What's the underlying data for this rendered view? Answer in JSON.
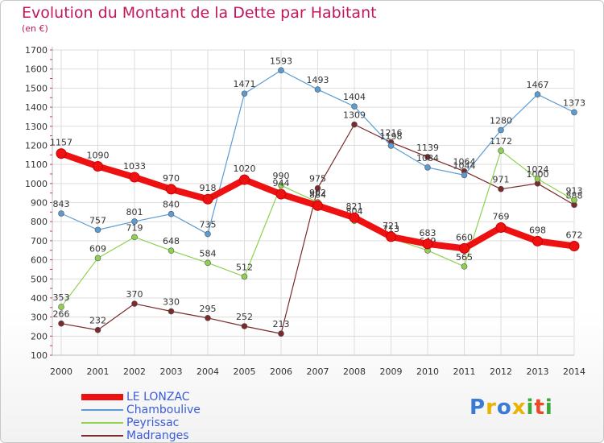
{
  "title": "Evolution du Montant de la Dette par Habitant",
  "unit": "(en €)",
  "logo": {
    "text": "Proxiti",
    "colors": [
      "#3a7bd5",
      "#e8b400",
      "#3a7bd5",
      "#e8b400",
      "#3aa935",
      "#e84a27",
      "#3aa935"
    ]
  },
  "chart_data": {
    "type": "line",
    "title": "Evolution du Montant de la Dette par Habitant",
    "ylabel": "(en €)",
    "xlabel": "",
    "categories": [
      "2000",
      "2001",
      "2002",
      "2003",
      "2004",
      "2005",
      "2006",
      "2007",
      "2008",
      "2009",
      "2010",
      "2011",
      "2012",
      "2013",
      "2014"
    ],
    "ylim": [
      100,
      1700
    ],
    "yticks": [
      100,
      200,
      300,
      400,
      500,
      600,
      700,
      800,
      900,
      1000,
      1100,
      1200,
      1300,
      1400,
      1500,
      1600,
      1700
    ],
    "grid": true,
    "legend": "bottom-left",
    "series": [
      {
        "name": "LE LONZAC",
        "color": "#ee1111",
        "values": [
          1157,
          1090,
          1033,
          970,
          918,
          1020,
          944,
          884,
          821,
          721,
          683,
          660,
          769,
          698,
          672
        ]
      },
      {
        "name": "Chamboulive",
        "color": "#5a9bd4",
        "values": [
          843,
          757,
          801,
          840,
          735,
          1471,
          1593,
          1493,
          1404,
          1198,
          1084,
          1044,
          1280,
          1467,
          1373
        ]
      },
      {
        "name": "Peyrissac",
        "color": "#8fd14f",
        "values": [
          353,
          609,
          719,
          648,
          584,
          512,
          990,
          902,
          804,
          713,
          649,
          565,
          1172,
          1024,
          913
        ]
      },
      {
        "name": "Madranges",
        "color": "#7a2a2a",
        "values": [
          266,
          232,
          370,
          330,
          295,
          252,
          213,
          975,
          1309,
          1216,
          1139,
          1064,
          971,
          1000,
          888
        ]
      }
    ]
  }
}
